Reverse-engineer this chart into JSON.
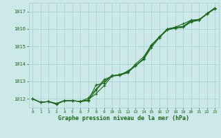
{
  "xlabel": "Graphe pression niveau de la mer (hPa)",
  "bg_color": "#cce8e8",
  "grid_color": "#aad4d4",
  "line_color": "#1a6b1a",
  "ylim": [
    1011.5,
    1017.5
  ],
  "xlim": [
    -0.5,
    23.5
  ],
  "yticks": [
    1012,
    1013,
    1014,
    1015,
    1016,
    1017
  ],
  "xticks": [
    0,
    1,
    2,
    3,
    4,
    5,
    6,
    7,
    8,
    9,
    10,
    11,
    12,
    13,
    14,
    15,
    16,
    17,
    18,
    19,
    20,
    21,
    22,
    23
  ],
  "series": [
    [
      1012.0,
      1011.8,
      1011.85,
      1011.7,
      1011.9,
      1011.9,
      1011.85,
      1011.9,
      1012.8,
      1012.9,
      1013.35,
      1013.35,
      1013.6,
      1013.9,
      1014.3,
      1015.05,
      1015.55,
      1016.0,
      1016.1,
      1016.15,
      1016.5,
      1016.5,
      1016.9,
      1017.2
    ],
    [
      1012.0,
      1011.8,
      1011.85,
      1011.75,
      1011.9,
      1011.9,
      1011.85,
      1012.05,
      1012.55,
      1013.1,
      1013.3,
      1013.4,
      1013.5,
      1014.0,
      1014.4,
      1015.1,
      1015.55,
      1016.0,
      1016.1,
      1016.3,
      1016.5,
      1016.55,
      1016.85,
      1017.2
    ],
    [
      1012.0,
      1011.8,
      1011.85,
      1011.7,
      1011.9,
      1011.9,
      1011.85,
      1011.95,
      1012.3,
      1012.75,
      1013.3,
      1013.35,
      1013.5,
      1013.9,
      1014.3,
      1015.05,
      1015.55,
      1015.95,
      1016.05,
      1016.1,
      1016.45,
      1016.5,
      1016.85,
      1017.2
    ],
    [
      1012.0,
      1011.8,
      1011.85,
      1011.7,
      1011.9,
      1011.9,
      1011.85,
      1011.9,
      1012.5,
      1013.0,
      1013.3,
      1013.4,
      1013.55,
      1013.9,
      1014.25,
      1014.95,
      1015.5,
      1015.95,
      1016.05,
      1016.1,
      1016.4,
      1016.5,
      1016.85,
      1017.15
    ]
  ]
}
